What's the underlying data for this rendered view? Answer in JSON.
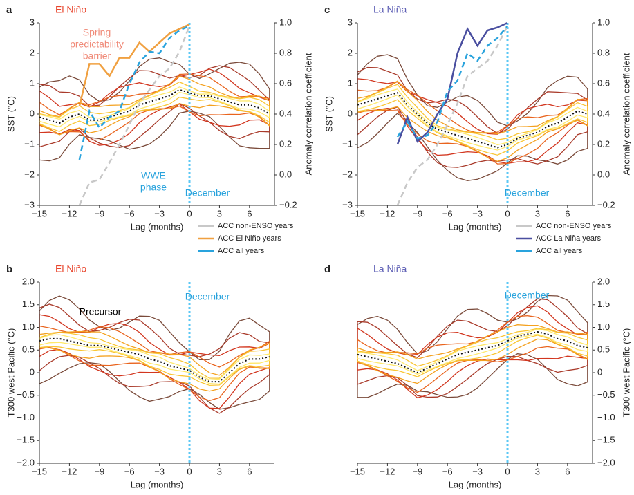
{
  "chart_data": [
    {
      "type": "line",
      "panel": "a",
      "title": "El Niño",
      "title_color": "#e8452c",
      "xlabel": "Lag (months)",
      "ylabel": "SST (°C)",
      "y2label": "Anomaly correlation coefficient",
      "xlim": [
        -15,
        8.5
      ],
      "ylim": [
        -3,
        3
      ],
      "y2lim": [
        -0.2,
        1.0
      ],
      "xticks": [
        {
          "value": -15,
          "label": "−15"
        },
        {
          "value": -12,
          "label": "−12"
        },
        {
          "value": -9,
          "label": "−9"
        },
        {
          "value": -6,
          "label": "−6"
        },
        {
          "value": -3,
          "label": "−3"
        },
        0,
        3,
        6
      ],
      "yticks": [
        {
          "value": -3,
          "label": "−3"
        },
        {
          "value": -2,
          "label": "−2"
        },
        {
          "value": -1,
          "label": "−1"
        },
        0,
        1,
        2,
        3
      ],
      "y2ticks": [
        {
          "value": -0.2,
          "label": "−0.2"
        },
        {
          "value": 0,
          "label": "0.0"
        },
        0.2,
        0.4,
        0.6,
        0.8,
        {
          "value": 1,
          "label": "1.0"
        }
      ],
      "x": [
        -15,
        -14,
        -13,
        -12,
        -11,
        -10,
        -9,
        -8,
        -7,
        -6,
        -5,
        -4,
        -3,
        -2,
        -1,
        0,
        1,
        2,
        3,
        4,
        5,
        6,
        7,
        8
      ],
      "values": [
        -0.1,
        -0.2,
        -0.3,
        -0.1,
        0.0,
        -0.2,
        -0.2,
        -0.1,
        0.0,
        0.1,
        0.3,
        0.4,
        0.5,
        0.6,
        0.8,
        0.7,
        0.6,
        0.6,
        0.5,
        0.4,
        0.3,
        0.3,
        0.2,
        0.0
      ],
      "vline": {
        "x": 0,
        "color": "#5bc8f5"
      },
      "annotations": [
        {
          "lines": [
            "Spring",
            "predictability",
            "barrier"
          ],
          "color": "#f08a78"
        },
        {
          "lines": [
            "WWE",
            "phase"
          ],
          "color": "#29a3dd"
        },
        {
          "lines": [
            "December"
          ],
          "color": "#29a3dd"
        }
      ],
      "series": [
        {
          "name": "ACC non-ENSO years",
          "color": "#c8c8c8",
          "style": "dashed",
          "axis": "y2",
          "x": [
            -11,
            -10,
            -9,
            -8,
            -7,
            -6,
            -5,
            -4,
            -3,
            -2,
            -1,
            0
          ],
          "values": [
            -0.2,
            -0.05,
            -0.03,
            0.08,
            0.2,
            0.33,
            0.47,
            0.56,
            0.65,
            0.7,
            0.81,
            0.98
          ]
        },
        {
          "name": "ACC El Niño years",
          "color": "#f0a040",
          "style": "solid",
          "axis": "y2",
          "x": [
            -11,
            -10,
            -9,
            -8,
            -7,
            -6,
            -5,
            -4,
            -3,
            -2,
            -1,
            0
          ],
          "values": [
            0.45,
            0.73,
            0.73,
            0.65,
            0.77,
            0.77,
            0.87,
            0.81,
            0.87,
            0.93,
            0.96,
            0.99
          ]
        },
        {
          "name": "ACC all years",
          "color": "#29a3dd",
          "style": "dashed",
          "axis": "y2",
          "x": [
            -11,
            -10,
            -9,
            -8,
            -7,
            -6,
            -5,
            -4,
            -3,
            -2,
            -1,
            0
          ],
          "values": [
            0.1,
            0.42,
            0.31,
            0.38,
            0.42,
            0.6,
            0.74,
            0.81,
            0.8,
            0.9,
            0.95,
            0.98
          ]
        }
      ]
    },
    {
      "type": "line",
      "panel": "b",
      "title": "El Niño",
      "title_color": "#e8452c",
      "xlabel": "Lag (months)",
      "ylabel": "T300 west Pacific (°C)",
      "xlim": [
        -15,
        8.5
      ],
      "ylim": [
        -2,
        2
      ],
      "xticks": [
        {
          "value": -15,
          "label": "−15"
        },
        {
          "value": -12,
          "label": "−12"
        },
        {
          "value": -9,
          "label": "−9"
        },
        {
          "value": -6,
          "label": "−6"
        },
        {
          "value": -3,
          "label": "−3"
        },
        0,
        3,
        6
      ],
      "yticks": [
        {
          "value": -2,
          "label": "−2.0"
        },
        {
          "value": -1.5,
          "label": "−1.5"
        },
        {
          "value": -1,
          "label": "−1.0"
        },
        {
          "value": -0.5,
          "label": "−0.5"
        },
        0,
        0.5,
        {
          "value": 1,
          "label": "1.0"
        },
        1.5,
        {
          "value": 2,
          "label": "2.0"
        }
      ],
      "x": [
        -15,
        -14,
        -13,
        -12,
        -11,
        -10,
        -9,
        -8,
        -7,
        -6,
        -5,
        -4,
        -3,
        -2,
        -1,
        0,
        1,
        2,
        3,
        4,
        5,
        6,
        7,
        8
      ],
      "values": [
        0.7,
        0.75,
        0.75,
        0.7,
        0.65,
        0.6,
        0.6,
        0.55,
        0.5,
        0.45,
        0.4,
        0.3,
        0.25,
        0.15,
        0.1,
        0.05,
        -0.1,
        -0.2,
        -0.2,
        0.0,
        0.2,
        0.3,
        0.3,
        0.35
      ],
      "vline": {
        "x": 0,
        "color": "#5bc8f5"
      },
      "annotations": [
        {
          "lines": [
            "December"
          ],
          "color": "#29a3dd"
        },
        {
          "lines": [
            "Precursor"
          ],
          "color": "#000000"
        }
      ]
    },
    {
      "type": "line",
      "panel": "c",
      "title": "La Niña",
      "title_color": "#5e5fb5",
      "xlabel": "Lag (months)",
      "ylabel": "SST (°C)",
      "y2label": "Anomaly correlation coefficient",
      "xlim": [
        -15,
        8.5
      ],
      "ylim": [
        -3,
        3
      ],
      "y2lim": [
        -0.2,
        1.0
      ],
      "xticks": [
        {
          "value": -15,
          "label": "−15"
        },
        {
          "value": -12,
          "label": "−12"
        },
        {
          "value": -9,
          "label": "−9"
        },
        {
          "value": -6,
          "label": "−6"
        },
        {
          "value": -3,
          "label": "−3"
        },
        0,
        3,
        6
      ],
      "yticks": [
        {
          "value": -3,
          "label": "−3"
        },
        {
          "value": -2,
          "label": "−2"
        },
        {
          "value": -1,
          "label": "−1"
        },
        0,
        1,
        2,
        3
      ],
      "y2ticks": [
        {
          "value": -0.2,
          "label": "−0.2"
        },
        {
          "value": 0,
          "label": "0.0"
        },
        0.2,
        0.4,
        0.6,
        0.8,
        {
          "value": 1,
          "label": "1.0"
        }
      ],
      "x": [
        -15,
        -14,
        -13,
        -12,
        -11,
        -10,
        -9,
        -8,
        -7,
        -6,
        -5,
        -4,
        -3,
        -2,
        -1,
        0,
        1,
        2,
        3,
        4,
        5,
        6,
        7,
        8
      ],
      "values": [
        0.3,
        0.4,
        0.5,
        0.6,
        0.7,
        0.3,
        0.0,
        -0.3,
        -0.5,
        -0.6,
        -0.7,
        -0.8,
        -0.9,
        -1.0,
        -1.1,
        -1.0,
        -0.8,
        -0.7,
        -0.6,
        -0.4,
        -0.3,
        -0.1,
        0.1,
        0.0
      ],
      "vline": {
        "x": 0,
        "color": "#5bc8f5"
      },
      "annotations": [
        {
          "lines": [
            "December"
          ],
          "color": "#29a3dd"
        }
      ],
      "series": [
        {
          "name": "ACC non-ENSO years",
          "color": "#c8c8c8",
          "style": "dashed",
          "axis": "y2",
          "x": [
            -11,
            -10,
            -9,
            -8,
            -7,
            -6,
            -5,
            -4,
            -3,
            -2,
            -1,
            0
          ],
          "values": [
            -0.2,
            -0.05,
            0.05,
            0.1,
            0.2,
            0.33,
            0.47,
            0.65,
            0.7,
            0.75,
            0.85,
            0.98
          ]
        },
        {
          "name": "ACC La Niña years",
          "color": "#4a4fa0",
          "style": "solid",
          "axis": "y2",
          "x": [
            -11,
            -10,
            -9,
            -8,
            -7,
            -6,
            -5,
            -4,
            -3,
            -2,
            -1,
            0
          ],
          "values": [
            0.2,
            0.38,
            0.22,
            0.28,
            0.4,
            0.5,
            0.8,
            0.96,
            0.85,
            0.95,
            0.97,
            1.0
          ]
        },
        {
          "name": "ACC all years",
          "color": "#29a3dd",
          "style": "dashed",
          "axis": "y2",
          "x": [
            -11,
            -10,
            -9,
            -8,
            -7,
            -6,
            -5,
            -4,
            -3,
            -2,
            -1,
            0
          ],
          "values": [
            0.25,
            0.35,
            0.24,
            0.26,
            0.35,
            0.55,
            0.62,
            0.8,
            0.75,
            0.85,
            0.9,
            0.98
          ]
        }
      ]
    },
    {
      "type": "line",
      "panel": "d",
      "title": "La Niña",
      "title_color": "#5e5fb5",
      "xlabel": "Lag (months)",
      "ylabel": "T300 west Pacific (°C)",
      "yaxis_side": "right",
      "xlim": [
        -15,
        8.5
      ],
      "ylim": [
        -2,
        2
      ],
      "xticks": [
        {
          "value": -15,
          "label": "−15"
        },
        {
          "value": -12,
          "label": "−12"
        },
        {
          "value": -9,
          "label": "−9"
        },
        {
          "value": -6,
          "label": "−6"
        },
        {
          "value": -3,
          "label": "−3"
        },
        0,
        3,
        6
      ],
      "yticks": [
        {
          "value": -2,
          "label": "−2.0"
        },
        {
          "value": -1.5,
          "label": "−1.5"
        },
        {
          "value": -1,
          "label": "−1.0"
        },
        {
          "value": -0.5,
          "label": "−0.5"
        },
        0,
        0.5,
        {
          "value": 1,
          "label": "1.0"
        },
        1.5,
        {
          "value": 2,
          "label": "2.0"
        }
      ],
      "x": [
        -15,
        -14,
        -13,
        -12,
        -11,
        -10,
        -9,
        -8,
        -7,
        -6,
        -5,
        -4,
        -3,
        -2,
        -1,
        0,
        1,
        2,
        3,
        4,
        5,
        6,
        7,
        8
      ],
      "values": [
        0.4,
        0.35,
        0.3,
        0.25,
        0.2,
        0.1,
        0.0,
        0.1,
        0.2,
        0.3,
        0.4,
        0.45,
        0.5,
        0.55,
        0.6,
        0.7,
        0.8,
        0.85,
        0.9,
        0.85,
        0.75,
        0.7,
        0.6,
        0.55
      ],
      "vline": {
        "x": 0,
        "color": "#5bc8f5"
      },
      "annotations": [
        {
          "lines": [
            "December"
          ],
          "color": "#29a3dd"
        }
      ]
    }
  ]
}
